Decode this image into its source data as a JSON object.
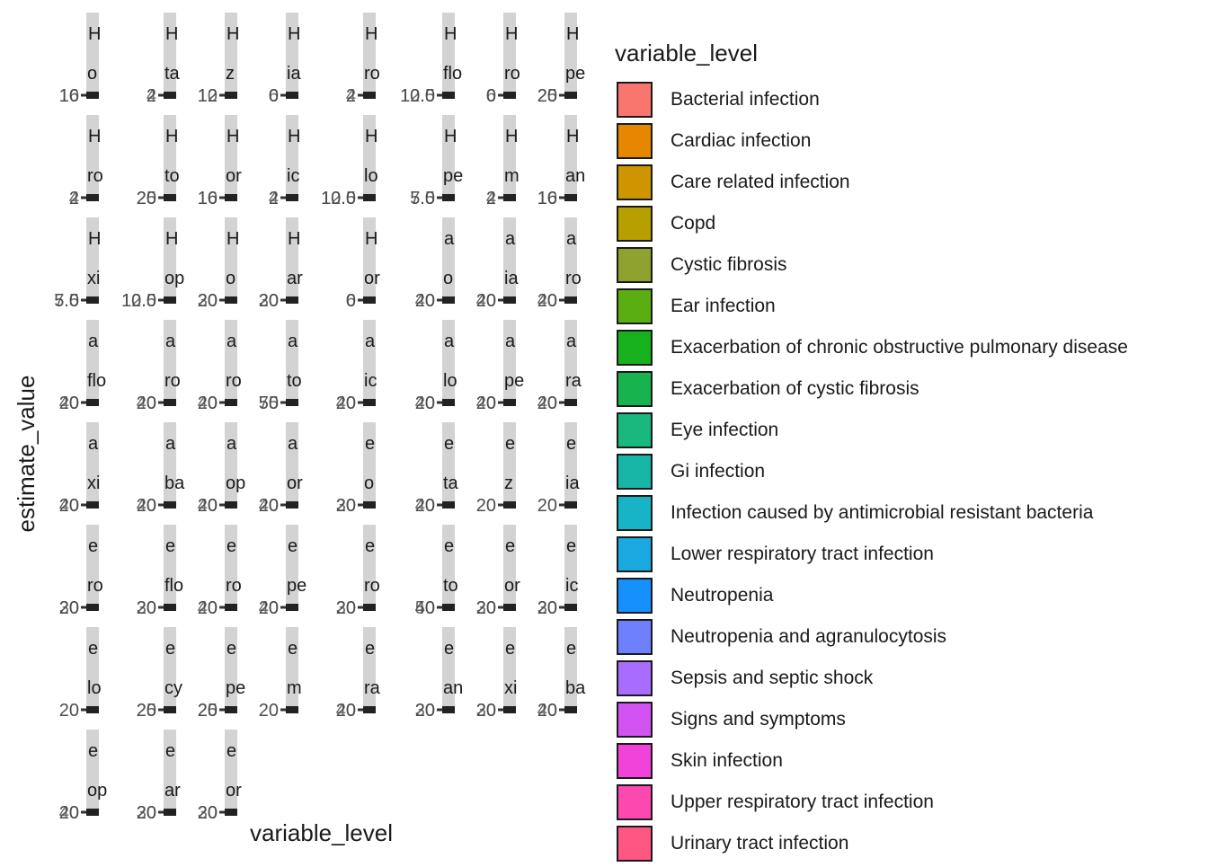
{
  "chart_data": {
    "type": "bar",
    "xlabel": "variable_level",
    "ylabel": "estimate_value",
    "legend_title": "variable_level",
    "legend_placement": "right",
    "grid": false,
    "facets": [
      {
        "strip_top": "H",
        "strip_bottom": "o",
        "ticks": [
          "16",
          "10"
        ]
      },
      {
        "strip_top": "H",
        "strip_bottom": "ta",
        "ticks": [
          "2",
          "4"
        ]
      },
      {
        "strip_top": "H",
        "strip_bottom": "z",
        "ticks": [
          "12",
          "10"
        ]
      },
      {
        "strip_top": "H",
        "strip_bottom": "ia",
        "ticks": [
          "0",
          "6"
        ]
      },
      {
        "strip_top": "H",
        "strip_bottom": "ro",
        "ticks": [
          "2",
          "4"
        ]
      },
      {
        "strip_top": "H",
        "strip_bottom": "flo",
        "ticks": [
          "10.0",
          "12.5"
        ]
      },
      {
        "strip_top": "H",
        "strip_bottom": "ro",
        "ticks": [
          "0",
          "6"
        ]
      },
      {
        "strip_top": "H",
        "strip_bottom": "pe",
        "ticks": [
          "20",
          "25"
        ]
      },
      {
        "strip_top": "H",
        "strip_bottom": "ro",
        "ticks": [
          "2",
          "4"
        ]
      },
      {
        "strip_top": "H",
        "strip_bottom": "to",
        "ticks": [
          "20",
          "25"
        ]
      },
      {
        "strip_top": "H",
        "strip_bottom": "or",
        "ticks": [
          "16",
          "10"
        ]
      },
      {
        "strip_top": "H",
        "strip_bottom": "ic",
        "ticks": [
          "2",
          "4"
        ]
      },
      {
        "strip_top": "H",
        "strip_bottom": "lo",
        "ticks": [
          "10.0",
          "12.5"
        ]
      },
      {
        "strip_top": "H",
        "strip_bottom": "pe",
        "ticks": [
          "5.0",
          "7.5"
        ]
      },
      {
        "strip_top": "H",
        "strip_bottom": "m",
        "ticks": [
          "2",
          "4"
        ]
      },
      {
        "strip_top": "H",
        "strip_bottom": "an",
        "ticks": [
          "16",
          "10"
        ]
      },
      {
        "strip_top": "H",
        "strip_bottom": "xi",
        "ticks": [
          "5.0",
          "7.5"
        ]
      },
      {
        "strip_top": "H",
        "strip_bottom": "op",
        "ticks": [
          "10.0",
          "12.5"
        ]
      },
      {
        "strip_top": "H",
        "strip_bottom": "o",
        "ticks": [
          "20",
          "30"
        ]
      },
      {
        "strip_top": "H",
        "strip_bottom": "ar",
        "ticks": [
          "20",
          "30"
        ]
      },
      {
        "strip_top": "H",
        "strip_bottom": "or",
        "ticks": [
          "0",
          "6"
        ]
      },
      {
        "strip_top": "a",
        "strip_bottom": "o",
        "ticks": [
          "20",
          "40"
        ]
      },
      {
        "strip_top": "a",
        "strip_bottom": "ia",
        "ticks": [
          "20",
          "40"
        ]
      },
      {
        "strip_top": "a",
        "strip_bottom": "ro",
        "ticks": [
          "20",
          "40"
        ]
      },
      {
        "strip_top": "a",
        "strip_bottom": "flo",
        "ticks": [
          "20",
          "40"
        ]
      },
      {
        "strip_top": "a",
        "strip_bottom": "ro",
        "ticks": [
          "20",
          "40"
        ]
      },
      {
        "strip_top": "a",
        "strip_bottom": "ro",
        "ticks": [
          "20",
          "40"
        ]
      },
      {
        "strip_top": "a",
        "strip_bottom": "to",
        "ticks": [
          "50",
          "75"
        ]
      },
      {
        "strip_top": "a",
        "strip_bottom": "ic",
        "ticks": [
          "20",
          "40"
        ]
      },
      {
        "strip_top": "a",
        "strip_bottom": "lo",
        "ticks": [
          "20",
          "40"
        ]
      },
      {
        "strip_top": "a",
        "strip_bottom": "pe",
        "ticks": [
          "20",
          "40"
        ]
      },
      {
        "strip_top": "a",
        "strip_bottom": "ra",
        "ticks": [
          "20",
          "40"
        ]
      },
      {
        "strip_top": "a",
        "strip_bottom": "xi",
        "ticks": [
          "20",
          "40"
        ]
      },
      {
        "strip_top": "a",
        "strip_bottom": "ba",
        "ticks": [
          "20",
          "40"
        ]
      },
      {
        "strip_top": "a",
        "strip_bottom": "op",
        "ticks": [
          "20",
          "40"
        ]
      },
      {
        "strip_top": "a",
        "strip_bottom": "or",
        "ticks": [
          "20",
          "40"
        ]
      },
      {
        "strip_top": "e",
        "strip_bottom": "o",
        "ticks": [
          "20",
          "30"
        ]
      },
      {
        "strip_top": "e",
        "strip_bottom": "ta",
        "ticks": [
          "20",
          "40"
        ]
      },
      {
        "strip_top": "e",
        "strip_bottom": "z",
        "ticks": [
          "20"
        ]
      },
      {
        "strip_top": "e",
        "strip_bottom": "ia",
        "ticks": [
          "20"
        ]
      },
      {
        "strip_top": "e",
        "strip_bottom": "ro",
        "ticks": [
          "20",
          "30"
        ]
      },
      {
        "strip_top": "e",
        "strip_bottom": "flo",
        "ticks": [
          "20",
          "30"
        ]
      },
      {
        "strip_top": "e",
        "strip_bottom": "ro",
        "ticks": [
          "20",
          "40"
        ]
      },
      {
        "strip_top": "e",
        "strip_bottom": "pe",
        "ticks": [
          "20",
          "40"
        ]
      },
      {
        "strip_top": "e",
        "strip_bottom": "ro",
        "ticks": [
          "20",
          "30"
        ]
      },
      {
        "strip_top": "e",
        "strip_bottom": "to",
        "ticks": [
          "40",
          "50"
        ]
      },
      {
        "strip_top": "e",
        "strip_bottom": "or",
        "ticks": [
          "20",
          "30"
        ]
      },
      {
        "strip_top": "e",
        "strip_bottom": "ic",
        "ticks": [
          "20",
          "30"
        ]
      },
      {
        "strip_top": "e",
        "strip_bottom": "lo",
        "ticks": [
          "20"
        ]
      },
      {
        "strip_top": "e",
        "strip_bottom": "cy",
        "ticks": [
          "20",
          "25"
        ]
      },
      {
        "strip_top": "e",
        "strip_bottom": "pe",
        "ticks": [
          "20",
          "25"
        ]
      },
      {
        "strip_top": "e",
        "strip_bottom": "m",
        "ticks": [
          "20"
        ]
      },
      {
        "strip_top": "e",
        "strip_bottom": "ra",
        "ticks": [
          "20",
          "40"
        ]
      },
      {
        "strip_top": "e",
        "strip_bottom": "an",
        "ticks": [
          "20",
          "30"
        ]
      },
      {
        "strip_top": "e",
        "strip_bottom": "xi",
        "ticks": [
          "20",
          "30"
        ]
      },
      {
        "strip_top": "e",
        "strip_bottom": "ba",
        "ticks": [
          "20",
          "40"
        ]
      },
      {
        "strip_top": "e",
        "strip_bottom": "op",
        "ticks": [
          "20",
          "40"
        ]
      },
      {
        "strip_top": "e",
        "strip_bottom": "ar",
        "ticks": [
          "20",
          "30"
        ]
      },
      {
        "strip_top": "e",
        "strip_bottom": "or",
        "ticks": [
          "20",
          "30"
        ]
      }
    ],
    "legend": [
      {
        "label": "Bacterial infection",
        "color": "#F8766D"
      },
      {
        "label": "Cardiac infection",
        "color": "#E58700"
      },
      {
        "label": "Care related infection",
        "color": "#CD9600"
      },
      {
        "label": "Copd",
        "color": "#B79F00"
      },
      {
        "label": "Cystic fibrosis",
        "color": "#8FA12E"
      },
      {
        "label": "Ear infection",
        "color": "#5BAE11"
      },
      {
        "label": "Exacerbation of chronic obstructive pulmonary disease",
        "color": "#16B11C"
      },
      {
        "label": "Exacerbation of cystic fibrosis",
        "color": "#16B34E"
      },
      {
        "label": "Eye infection",
        "color": "#19B87E"
      },
      {
        "label": "Gi infection",
        "color": "#17B5A6"
      },
      {
        "label": "Infection caused by antimicrobial resistant bacteria",
        "color": "#17B4C7"
      },
      {
        "label": "Lower respiratory tract infection",
        "color": "#19A8E0"
      },
      {
        "label": "Neutropenia",
        "color": "#1690FD"
      },
      {
        "label": "Neutropenia and agranulocytosis",
        "color": "#6F80FF"
      },
      {
        "label": "Sepsis and septic shock",
        "color": "#A86CFF"
      },
      {
        "label": "Signs and symptoms",
        "color": "#D353F2"
      },
      {
        "label": "Skin infection",
        "color": "#F142DA"
      },
      {
        "label": "Upper respiratory tract infection",
        "color": "#FD48B0"
      },
      {
        "label": "Urinary tract infection",
        "color": "#FF5683"
      }
    ]
  }
}
